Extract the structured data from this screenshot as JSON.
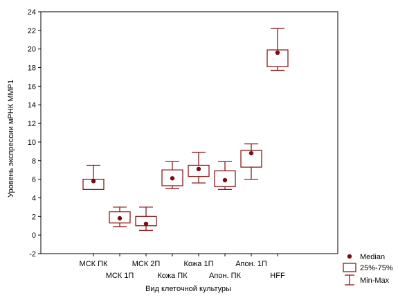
{
  "chart_data": {
    "type": "box",
    "title": "",
    "xlabel": "Вид клеточной культуры",
    "ylabel": "Уровень экспрессии мРНК ММР1",
    "ylim": [
      -2,
      24
    ],
    "yticks": [
      -2,
      0,
      2,
      4,
      6,
      8,
      10,
      12,
      14,
      16,
      18,
      20,
      22,
      24
    ],
    "grid": false,
    "legend_position": "bottom-right",
    "colors": {
      "box": "#8b1a1a",
      "median": "#7a0d0d",
      "axis": "#000000"
    },
    "categories": [
      "МСК ПК",
      "МСК 1П",
      "МСК 2П",
      "Кожа ПК",
      "Кожа 1П",
      "Апон. ПК",
      "Апон. 1П",
      "HFF"
    ],
    "label_rows": [
      "top",
      "bottom",
      "top",
      "bottom",
      "top",
      "bottom",
      "top",
      "bottom"
    ],
    "boxes": [
      {
        "min": 4.9,
        "q1": 4.9,
        "median": 5.8,
        "q3": 6.0,
        "max": 7.5
      },
      {
        "min": 0.9,
        "q1": 1.3,
        "median": 1.8,
        "q3": 2.5,
        "max": 3.0
      },
      {
        "min": 0.5,
        "q1": 1.0,
        "median": 1.2,
        "q3": 2.0,
        "max": 3.0
      },
      {
        "min": 5.0,
        "q1": 5.3,
        "median": 6.1,
        "q3": 7.0,
        "max": 7.9
      },
      {
        "min": 5.6,
        "q1": 6.3,
        "median": 7.1,
        "q3": 7.5,
        "max": 8.9
      },
      {
        "min": 4.9,
        "q1": 5.2,
        "median": 5.9,
        "q3": 6.9,
        "max": 7.9
      },
      {
        "min": 6.0,
        "q1": 7.3,
        "median": 8.8,
        "q3": 9.1,
        "max": 9.8
      },
      {
        "min": 17.7,
        "q1": 18.1,
        "median": 19.6,
        "q3": 19.9,
        "max": 22.2
      }
    ],
    "legend": [
      {
        "key": "median",
        "label": "Median"
      },
      {
        "key": "box",
        "label": "25%-75%"
      },
      {
        "key": "whisker",
        "label": "Min-Max"
      }
    ]
  }
}
